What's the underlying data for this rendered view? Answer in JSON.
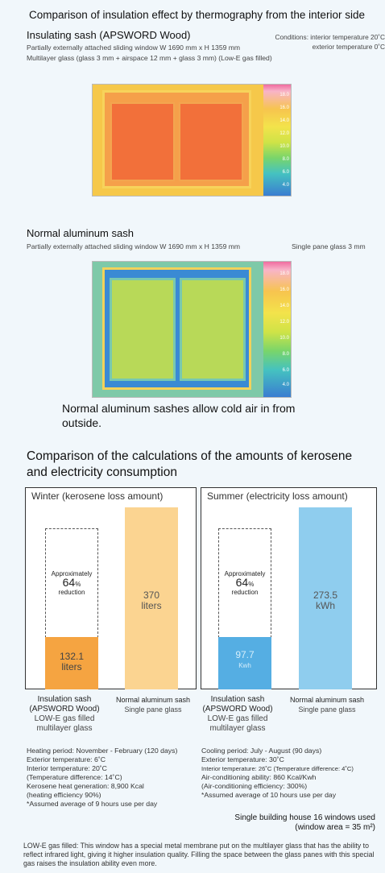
{
  "header": {
    "title": "Comparison of insulation effect by thermography from the interior side",
    "conditions_line1": "Conditions: interior temperature 20˚C",
    "conditions_line2": "exterior temperature 0˚C"
  },
  "sash1": {
    "title": "Insulating sash (APSWORD Wood)",
    "desc1": "Partially externally attached sliding window W 1690 mm x H 1359 mm",
    "desc2": "Multilayer glass (glass 3 mm + airspace 12 mm + glass 3 mm) (Low-E gas filled)"
  },
  "sash2": {
    "title": "Normal aluminum sash",
    "desc1": "Partially externally attached sliding window W 1690 mm x H 1359 mm",
    "desc2": "Single pane glass 3 mm"
  },
  "thermo_scale": [
    "18.0",
    "16.0",
    "14.0",
    "12.0",
    "10.0",
    "8.0",
    "6.0",
    "4.0"
  ],
  "note": "Normal aluminum sashes allow cold air in from outside.",
  "comparison": {
    "title": "Comparison of the calculations of the amounts of kerosene and electricity consumption",
    "winter": {
      "title": "Winter (kerosene loss amount)",
      "approx_label": "Approximately",
      "approx_value": "64",
      "approx_unit": "%",
      "approx_suffix": "reduction",
      "bar1_value": "132.1",
      "bar1_unit": "liters",
      "bar2_value": "370",
      "bar2_unit": "liters",
      "legend1_line1": "Insulation sash",
      "legend1_line2": "(APSWORD Wood)",
      "legend1_line3": "LOW-E gas filled",
      "legend1_line4": "multilayer glass",
      "legend2_line1": "Normal aluminum sash",
      "legend2_line2": "Single pane glass",
      "info": [
        "Heating period: November - February (120 days)",
        "Exterior temperature: 6˚C",
        "Interior temperature: 20˚C",
        " (Temperature difference: 14˚C)",
        "Kerosene heat generation: 8,900 Kcal",
        " (heating efficiency 90%)",
        "*Assumed average of 9 hours use per day"
      ]
    },
    "summer": {
      "title": "Summer (electricity loss amount)",
      "approx_label": "Approximately",
      "approx_value": "64",
      "approx_unit": "%",
      "approx_suffix": "reduction",
      "bar1_value": "97.7",
      "bar1_unit": "Kwh",
      "bar2_value": "273.5",
      "bar2_unit": "kWh",
      "legend1_line1": "Insulation sash",
      "legend1_line2": "(APSWORD Wood)",
      "legend1_line3": "LOW-E gas filled",
      "legend1_line4": "multilayer glass",
      "legend2_line1": "Normal aluminum sash",
      "legend2_line2": "Single pane glass",
      "info": [
        "Cooling period: July - August (90 days)",
        "Exterior temperature: 30˚C",
        "Interior temperature: 26˚C (Temperature difference: 4˚C)",
        "Air-conditioning ability: 860 Kcal/Kwh",
        " (Air-conditioning efficiency: 300%)",
        "*Assumed average of 10 hours use per day"
      ]
    },
    "house_line1": "Single building house 16 windows used",
    "house_line2": "(window area = 35 m²)"
  },
  "footnote": "LOW-E gas filled: This window has a special metal membrane put on the multilayer glass that has the ability to reflect infrared light, giving it higher insulation quality. Filling the space between the glass panes with this special gas raises the insulation ability even more.",
  "colors": {
    "winter_bar_insulation": "#f5a441",
    "winter_bar_normal": "#fbd491",
    "summer_bar_insulation": "#55aee3",
    "summer_bar_normal": "#8fcdee",
    "background": "#f1f7fb"
  }
}
